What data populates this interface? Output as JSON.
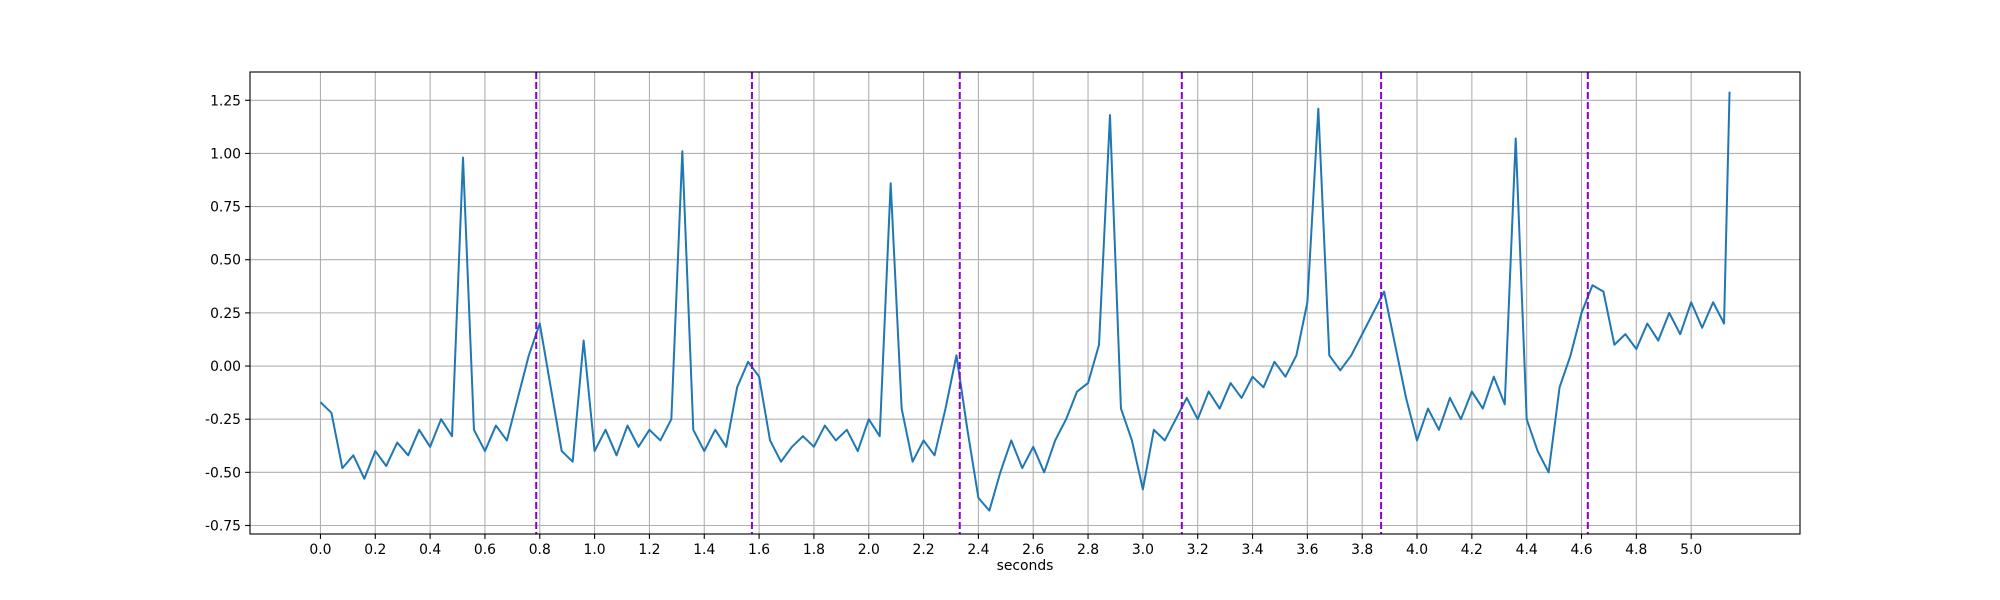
{
  "chart_data": {
    "type": "line",
    "x_label": "seconds",
    "color": "#1f77b4",
    "grid": true,
    "xlim": [
      -0.257,
      5.397
    ],
    "ylim": [
      -0.79,
      1.383
    ],
    "xticks": [
      {
        "value": 0,
        "label": "0.0"
      },
      0.2,
      0.4,
      0.6,
      0.8,
      {
        "value": 1,
        "label": "1.0"
      },
      1.2,
      1.4,
      1.6,
      1.8,
      {
        "value": 2,
        "label": "2.0"
      },
      2.2,
      2.4,
      2.6,
      2.8,
      {
        "value": 3,
        "label": "3.0"
      },
      3.2,
      3.4,
      3.6,
      3.8,
      {
        "value": 4,
        "label": "4.0"
      },
      4.2,
      4.4,
      4.6,
      4.8,
      {
        "value": 5,
        "label": "5.0"
      }
    ],
    "yticks": [
      -0.75,
      {
        "value": -0.5,
        "label": "-0.50"
      },
      -0.25,
      {
        "value": 0,
        "label": "0.00"
      },
      0.25,
      {
        "value": 0.5,
        "label": "0.50"
      },
      0.75,
      {
        "value": 1,
        "label": "1.00"
      },
      1.25
    ],
    "x": [
      0.0,
      0.04,
      0.08,
      0.12,
      0.16,
      0.2,
      0.24,
      0.28,
      0.32,
      0.36,
      0.4,
      0.44,
      0.48,
      0.52,
      0.56,
      0.6,
      0.64,
      0.68,
      0.72,
      0.76,
      0.8,
      0.84,
      0.88,
      0.92,
      0.96,
      1.0,
      1.04,
      1.08,
      1.12,
      1.16,
      1.2,
      1.24,
      1.28,
      1.32,
      1.36,
      1.4,
      1.44,
      1.48,
      1.52,
      1.56,
      1.6,
      1.64,
      1.68,
      1.72,
      1.76,
      1.8,
      1.84,
      1.88,
      1.92,
      1.96,
      2.0,
      2.04,
      2.08,
      2.12,
      2.16,
      2.2,
      2.24,
      2.28,
      2.32,
      2.36,
      2.4,
      2.44,
      2.48,
      2.52,
      2.56,
      2.6,
      2.64,
      2.68,
      2.72,
      2.76,
      2.8,
      2.84,
      2.88,
      2.92,
      2.96,
      3.0,
      3.04,
      3.08,
      3.12,
      3.16,
      3.2,
      3.24,
      3.28,
      3.32,
      3.36,
      3.4,
      3.44,
      3.48,
      3.52,
      3.56,
      3.6,
      3.64,
      3.68,
      3.72,
      3.76,
      3.8,
      3.84,
      3.88,
      3.92,
      3.96,
      4.0,
      4.04,
      4.08,
      4.12,
      4.16,
      4.2,
      4.24,
      4.28,
      4.32,
      4.36,
      4.4,
      4.44,
      4.48,
      4.52,
      4.56,
      4.6,
      4.64,
      4.68,
      4.72,
      4.76,
      4.8,
      4.84,
      4.88,
      4.92,
      4.96,
      5.0,
      5.04,
      5.08,
      5.12,
      5.14
    ],
    "values": [
      -0.17,
      -0.22,
      -0.48,
      -0.42,
      -0.53,
      -0.4,
      -0.47,
      -0.36,
      -0.42,
      -0.3,
      -0.38,
      -0.25,
      -0.33,
      0.98,
      -0.3,
      -0.4,
      -0.28,
      -0.35,
      -0.15,
      0.05,
      0.2,
      -0.1,
      -0.4,
      -0.45,
      0.12,
      -0.4,
      -0.3,
      -0.42,
      -0.28,
      -0.38,
      -0.3,
      -0.35,
      -0.25,
      1.01,
      -0.3,
      -0.4,
      -0.3,
      -0.38,
      -0.1,
      0.02,
      -0.05,
      -0.35,
      -0.45,
      -0.38,
      -0.33,
      -0.38,
      -0.28,
      -0.35,
      -0.3,
      -0.4,
      -0.25,
      -0.33,
      0.86,
      -0.2,
      -0.45,
      -0.35,
      -0.42,
      -0.2,
      0.05,
      -0.3,
      -0.62,
      -0.68,
      -0.5,
      -0.35,
      -0.48,
      -0.38,
      -0.5,
      -0.35,
      -0.25,
      -0.12,
      -0.08,
      0.1,
      1.18,
      -0.2,
      -0.35,
      -0.58,
      -0.3,
      -0.35,
      -0.25,
      -0.15,
      -0.25,
      -0.12,
      -0.2,
      -0.08,
      -0.15,
      -0.05,
      -0.1,
      0.02,
      -0.05,
      0.05,
      0.3,
      1.21,
      0.05,
      -0.02,
      0.05,
      0.15,
      0.25,
      0.35,
      0.1,
      -0.15,
      -0.35,
      -0.2,
      -0.3,
      -0.15,
      -0.25,
      -0.12,
      -0.2,
      -0.05,
      -0.18,
      1.07,
      -0.25,
      -0.4,
      -0.5,
      -0.1,
      0.05,
      0.25,
      0.38,
      0.35,
      0.1,
      0.15,
      0.08,
      0.2,
      0.12,
      0.25,
      0.15,
      0.3,
      0.18,
      0.3,
      0.2,
      1.29
    ],
    "vlines": {
      "x": [
        0.787,
        1.574,
        2.332,
        3.142,
        3.869,
        4.623
      ],
      "color": "#8a00d4",
      "style": "dashed"
    }
  }
}
